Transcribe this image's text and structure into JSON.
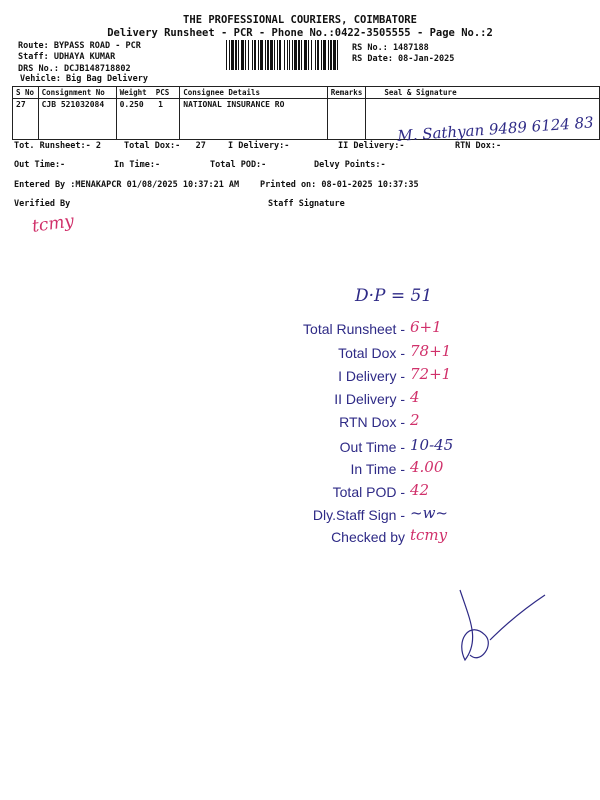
{
  "header": {
    "company": "THE PROFESSIONAL COURIERS, COIMBATORE",
    "subtitle": "Delivery Runsheet - PCR - Phone No.:0422-3505555 - Page No.:2",
    "route": "Route: BYPASS ROAD - PCR",
    "staff": "Staff: UDHAYA KUMAR",
    "drs": "DRS No.: DCJB148718802",
    "vehicle": "Vehicle: Big Bag Delivery",
    "rs_no": "RS No.: 1487188",
    "rs_date": "RS Date: 08-Jan-2025"
  },
  "table": {
    "columns": [
      "S No",
      "Consignment No",
      "Weight  PCS",
      "Consignee Details",
      "Remarks",
      "Seal & Signature"
    ],
    "rows": [
      {
        "sno": "27",
        "consignment": "CJB 521032084",
        "weight_pcs": "0.250   1",
        "consignee": "NATIONAL INSURANCE RO",
        "remarks": "",
        "signature": "M. Sathyan 9489 6124 83"
      }
    ]
  },
  "totals": {
    "tot_runsheet": "Tot. Runsheet:- 2",
    "total_dox": "Total Dox:-   27",
    "i_delivery": "I Delivery:-",
    "ii_delivery": "II Delivery:-",
    "rtn_dox": "RTN Dox:-",
    "out_time": "Out Time:-",
    "in_time": "In Time:-",
    "total_pod": "Total POD:-",
    "delvy_points": "Delvy Points:-",
    "entered_by": "Entered By :MENAKAPCR 01/08/2025 10:37:21 AM",
    "printed_on": "Printed on: 08-01-2025 10:37:35",
    "verified_by": "Verified By",
    "staff_signature": "Staff Signature",
    "verified_initials": "tcmy"
  },
  "stamp": {
    "dp": "D·P = 51",
    "rows": [
      {
        "label": "Total Runsheet -",
        "value": "6+1",
        "color": "red"
      },
      {
        "label": "Total Dox -",
        "value": "78+1",
        "color": "red"
      },
      {
        "label": "I Delivery -",
        "value": "72+1",
        "color": "red"
      },
      {
        "label": "II Delivery -",
        "value": "4",
        "color": "red"
      },
      {
        "label": "RTN Dox -",
        "value": "2",
        "color": "red"
      },
      {
        "label": "Out Time  -",
        "value": "10-45",
        "color": "blue"
      },
      {
        "label": "In Time  -",
        "value": "4.00",
        "color": "red"
      },
      {
        "label": "Total POD  -",
        "value": "42",
        "color": "red"
      },
      {
        "label": "Dly.Staff Sign  -",
        "value": "~w~",
        "color": "blue"
      },
      {
        "label": "Checked by",
        "value": "tcmy",
        "color": "red"
      }
    ]
  },
  "colors": {
    "ink_blue": "#2e2a86",
    "ink_red": "#d0306a"
  }
}
